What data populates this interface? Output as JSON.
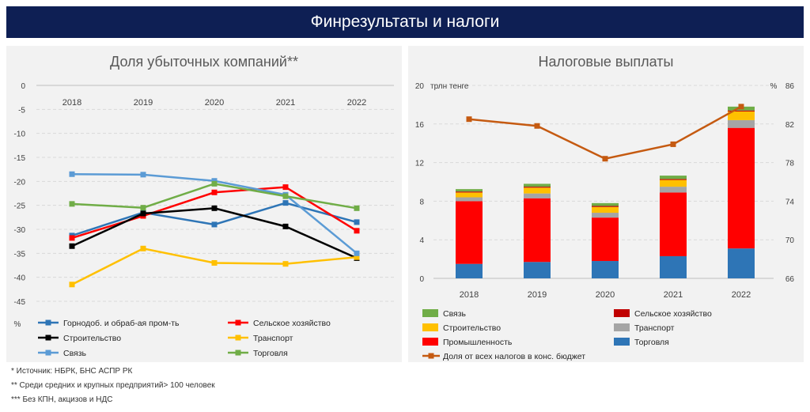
{
  "header": {
    "title": "Финрезультаты и налоги"
  },
  "colors": {
    "banner": "#0e1f54",
    "mining": "#2e75b6",
    "agri": "#ff0000",
    "constr": "#000000",
    "transport": "#ffc000",
    "comm": "#5b9bd5",
    "trade": "#70ad47",
    "b_comm": "#70ad47",
    "b_agri": "#c00000",
    "b_constr": "#ffc000",
    "b_transport": "#a5a5a5",
    "b_industry": "#ff0000",
    "b_trade": "#2e75b6",
    "b_share": "#c55a11"
  },
  "chart_data": [
    {
      "type": "line",
      "title": "Доля убыточных компаний**",
      "x": [
        "2018",
        "2019",
        "2020",
        "2021",
        "2022"
      ],
      "ylim": [
        -45,
        0
      ],
      "yticks": [
        "0",
        "-5",
        "-10",
        "-15",
        "-20",
        "-25",
        "-30",
        "-35",
        "-40",
        "-45"
      ],
      "yunit": "%",
      "grid": true,
      "legend": "bottom",
      "series": [
        {
          "name": "Горнодоб. и обраб-ая пром-ть",
          "color": "#2e75b6",
          "values": [
            -31.3,
            -26.5,
            -29.0,
            -24.5,
            -28.5
          ]
        },
        {
          "name": "Сельское хозяйство",
          "color": "#ff0000",
          "values": [
            -31.8,
            -27.2,
            -22.3,
            -21.2,
            -30.3
          ]
        },
        {
          "name": "Строительство",
          "color": "#000000",
          "values": [
            -33.5,
            -26.7,
            -25.6,
            -29.4,
            -36.0
          ]
        },
        {
          "name": "Транспорт",
          "color": "#ffc000",
          "values": [
            -41.5,
            -34.0,
            -37.0,
            -37.2,
            -35.8
          ]
        },
        {
          "name": "Связь",
          "color": "#5b9bd5",
          "values": [
            -18.5,
            -18.6,
            -19.9,
            -22.8,
            -35.0
          ]
        },
        {
          "name": "Торговля",
          "color": "#70ad47",
          "values": [
            -24.7,
            -25.5,
            -20.5,
            -23.1,
            -25.6
          ]
        }
      ]
    },
    {
      "type": "bar",
      "stacked": true,
      "title": "Налоговые выплаты",
      "categories": [
        "2018",
        "2019",
        "2020",
        "2021",
        "2022"
      ],
      "ylabel": "трлн тенге",
      "ylim": [
        0,
        20
      ],
      "yticks": [
        "0",
        "4",
        "8",
        "12",
        "16",
        "20"
      ],
      "y2label": "%",
      "y2lim": [
        66,
        86
      ],
      "y2ticks": [
        "66",
        "70",
        "74",
        "78",
        "82",
        "86"
      ],
      "legend": "bottom",
      "series": [
        {
          "name": "Торговля",
          "color": "#2e75b6",
          "values": [
            1.5,
            1.7,
            1.8,
            2.3,
            3.1
          ]
        },
        {
          "name": "Промышленность",
          "color": "#ff0000",
          "values": [
            6.5,
            6.6,
            4.5,
            6.6,
            12.5
          ]
        },
        {
          "name": "Транспорт",
          "color": "#a5a5a5",
          "values": [
            0.4,
            0.5,
            0.5,
            0.6,
            0.8
          ]
        },
        {
          "name": "Строительство",
          "color": "#ffc000",
          "values": [
            0.5,
            0.6,
            0.6,
            0.7,
            0.9
          ]
        },
        {
          "name": "Сельское хозяйство",
          "color": "#c00000",
          "values": [
            0.1,
            0.1,
            0.1,
            0.1,
            0.1
          ]
        },
        {
          "name": "Связь",
          "color": "#70ad47",
          "values": [
            0.25,
            0.3,
            0.3,
            0.35,
            0.4
          ]
        }
      ],
      "line": {
        "name": "Доля от всех налогов в конс. бюджет",
        "color": "#c55a11",
        "axis": "right",
        "values": [
          82.5,
          81.8,
          78.4,
          79.9,
          83.8
        ]
      }
    }
  ],
  "footnotes": {
    "f1": "* Источник: НБРК, БНС АСПР РК",
    "f2": "** Среди средних и крупных предприятий> 100 человек",
    "f3": "*** Без КПН, акцизов и НДС"
  }
}
